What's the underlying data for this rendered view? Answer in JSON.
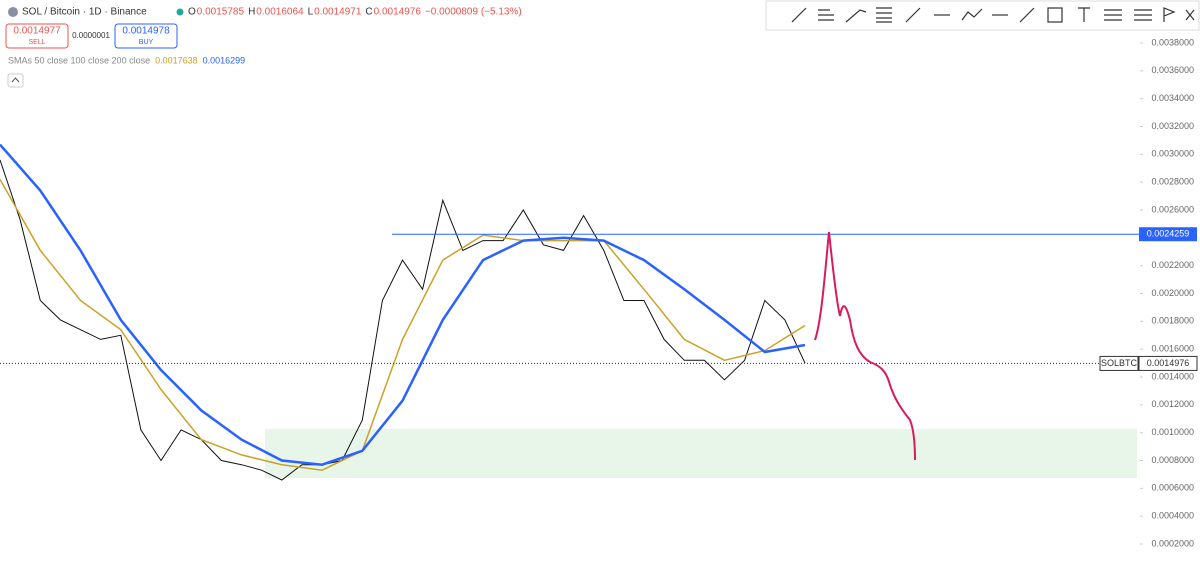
{
  "header": {
    "symbol": "SOL / Bitcoin · 1D · Binance",
    "ohlc": [
      {
        "label": "O",
        "value": "0.0015785"
      },
      {
        "label": "H",
        "value": "0.0016064"
      },
      {
        "label": "L",
        "value": "0.0014971"
      },
      {
        "label": "C",
        "value": "0.0014976"
      }
    ],
    "change": "−0.0000809 (−5.13%)"
  },
  "trade": {
    "sell_price": "0.0014977",
    "sell_label": "SELL",
    "spread": "0.0000001",
    "buy_price": "0.0014978",
    "buy_label": "BUY"
  },
  "indicator": {
    "label": "SMAs 50 close 100 close 200 close",
    "values": [
      {
        "text": "0.0017638",
        "color": "#c9a227"
      },
      {
        "text": "0.0016299",
        "color": "#2962ff"
      }
    ]
  },
  "chart_data": {
    "type": "line",
    "series": [
      {
        "name": "SOLBTC",
        "color": "#111111",
        "values": [
          0.00296,
          0.00253,
          0.00195,
          0.00181,
          0.00174,
          0.00167,
          0.0017,
          0.00102,
          0.0008,
          0.00102,
          0.00095,
          0.0008,
          0.00077,
          0.00073,
          0.00066,
          0.00077,
          0.00077,
          0.0008,
          0.00109,
          0.00195,
          0.00224,
          0.00203,
          0.00267,
          0.00231,
          0.00238,
          0.00238,
          0.0026,
          0.00235,
          0.00231,
          0.00256,
          0.00231,
          0.00195,
          0.00195,
          0.00167,
          0.00152,
          0.00152,
          0.00138,
          0.00152,
          0.00195,
          0.00181,
          0.0015
        ]
      },
      {
        "name": "SMA 50",
        "color": "#c9a227",
        "values": [
          0.00282,
          0.00231,
          0.00195,
          0.00174,
          0.00131,
          0.00095,
          0.00084,
          0.00077,
          0.00073,
          0.00087,
          0.00167,
          0.00224,
          0.00242,
          0.00238,
          0.00238,
          0.00238,
          0.00203,
          0.00167,
          0.00152,
          0.00159,
          0.00177
        ]
      },
      {
        "name": "SMA 200",
        "color": "#2962ff",
        "values": [
          0.00307,
          0.00274,
          0.00231,
          0.00181,
          0.00145,
          0.00116,
          0.00095,
          0.0008,
          0.00077,
          0.00087,
          0.00123,
          0.00181,
          0.00224,
          0.00238,
          0.0024,
          0.00238,
          0.00224,
          0.00203,
          0.00181,
          0.00158,
          0.00163
        ]
      }
    ],
    "ylim": [
      0.0002,
      0.0038
    ],
    "yticks": [
      {
        "value": 0.0002,
        "label": "0.0002000"
      },
      {
        "value": 0.0004,
        "label": "0.0004000"
      },
      {
        "value": 0.0006,
        "label": "0.0006000"
      },
      {
        "value": 0.0008,
        "label": "0.0008000"
      },
      {
        "value": 0.001,
        "label": "0.0010000"
      },
      {
        "value": 0.0012,
        "label": "0.0012000"
      },
      {
        "value": 0.0014,
        "label": "0.0014000"
      },
      {
        "value": 0.0016,
        "label": "0.0016000"
      },
      {
        "value": 0.0018,
        "label": "0.0018000"
      },
      {
        "value": 0.002,
        "label": "0.0020000"
      },
      {
        "value": 0.0022,
        "label": "0.0022000"
      },
      {
        "value": 0.0024,
        "label": "0.0024000"
      },
      {
        "value": 0.0026,
        "label": "0.0026000"
      },
      {
        "value": 0.0028,
        "label": "0.0028000"
      },
      {
        "value": 0.003,
        "label": "0.0030000"
      },
      {
        "value": 0.0032,
        "label": "0.0032000"
      },
      {
        "value": 0.0034,
        "label": "0.0034000"
      },
      {
        "value": 0.0036,
        "label": "0.0036000"
      },
      {
        "value": 0.0038,
        "label": "0.0038000"
      }
    ],
    "price_line": {
      "value": 0.0024259,
      "color": "#2962ff"
    },
    "last_price": {
      "name": "SOLBTC",
      "value": 0.0014976
    }
  }
}
